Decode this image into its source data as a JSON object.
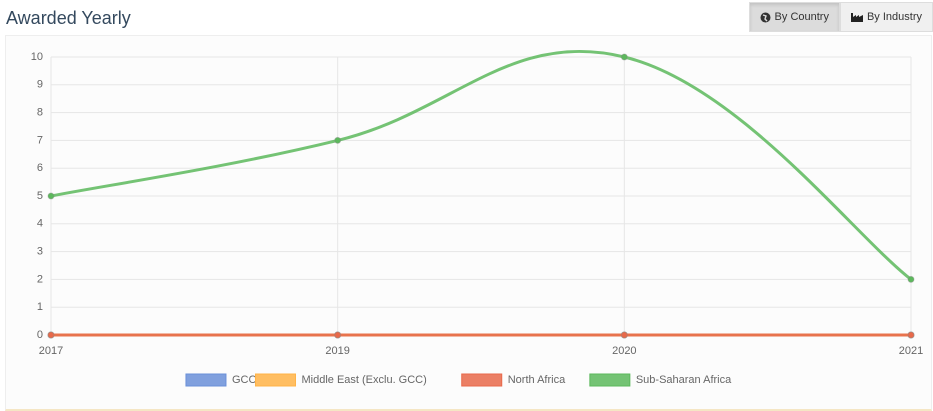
{
  "toolbar": {
    "buttons": [
      "By Country",
      "By Industry"
    ]
  },
  "chart_data": {
    "type": "line",
    "title": "Awarded Yearly",
    "categories": [
      "2017",
      "2019",
      "2020",
      "2021"
    ],
    "series": [
      {
        "name": "GCC",
        "color": "#6a8fd8",
        "values": [
          0,
          0,
          0,
          0
        ]
      },
      {
        "name": "Middle East (Exclu. GCC)",
        "color": "#ffb347",
        "values": [
          0,
          0,
          0,
          0
        ]
      },
      {
        "name": "North Africa",
        "color": "#e8694a",
        "values": [
          0,
          0,
          0,
          0
        ]
      },
      {
        "name": "Sub-Saharan Africa",
        "color": "#5cb85c",
        "values": [
          5,
          7,
          10,
          2
        ]
      }
    ],
    "ylim": [
      0,
      10
    ],
    "yticks": [
      0,
      1,
      2,
      3,
      4,
      5,
      6,
      7,
      8,
      9,
      10
    ],
    "grid": true,
    "legend": "bottom"
  }
}
